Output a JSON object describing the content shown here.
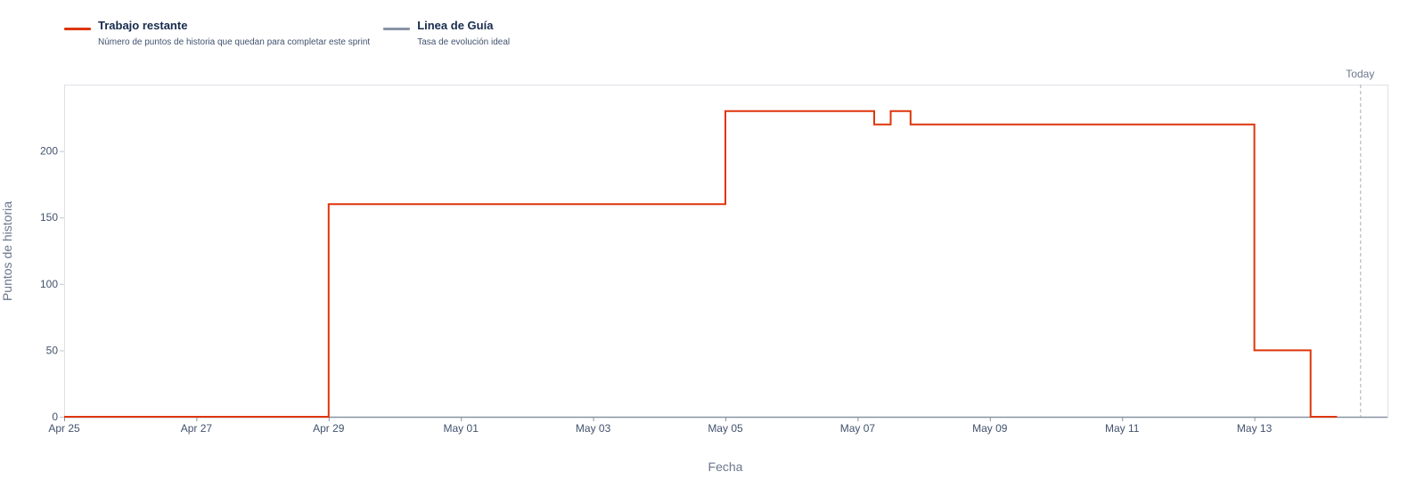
{
  "legend": [
    {
      "label": "Trabajo restante",
      "description": "Número de puntos de historia que quedan para completar este sprint",
      "color": "#de350b"
    },
    {
      "label": "Linea de Guía",
      "description": "Tasa de evolución ideal",
      "color": "#8993a4"
    }
  ],
  "chart_data": {
    "type": "line",
    "xlabel": "Fecha",
    "ylabel": "Puntos de historia",
    "today_label": "Today",
    "x_start": "Apr 25",
    "x_ticks": [
      "Apr 25",
      "Apr 27",
      "Apr 29",
      "May 01",
      "May 03",
      "May 05",
      "May 07",
      "May 09",
      "May 11",
      "May 13"
    ],
    "x_tick_days": [
      0,
      2,
      4,
      6,
      8,
      10,
      12,
      14,
      16,
      18
    ],
    "y_ticks": [
      0,
      50,
      100,
      150,
      200
    ],
    "ylim": [
      0,
      250
    ],
    "x_range_days": [
      0,
      20.0
    ],
    "today_day": 19.6,
    "grid": false,
    "series": [
      {
        "name": "Trabajo restante",
        "color": "#de350b",
        "step": true,
        "points": [
          [
            0,
            0
          ],
          [
            4.0,
            0
          ],
          [
            4.0,
            160
          ],
          [
            10.0,
            160
          ],
          [
            10.0,
            230
          ],
          [
            12.25,
            230
          ],
          [
            12.25,
            220
          ],
          [
            12.5,
            220
          ],
          [
            12.5,
            230
          ],
          [
            12.8,
            230
          ],
          [
            12.8,
            220
          ],
          [
            18.0,
            220
          ],
          [
            18.0,
            50
          ],
          [
            18.85,
            50
          ],
          [
            18.85,
            0
          ],
          [
            19.25,
            0
          ]
        ]
      }
    ]
  }
}
